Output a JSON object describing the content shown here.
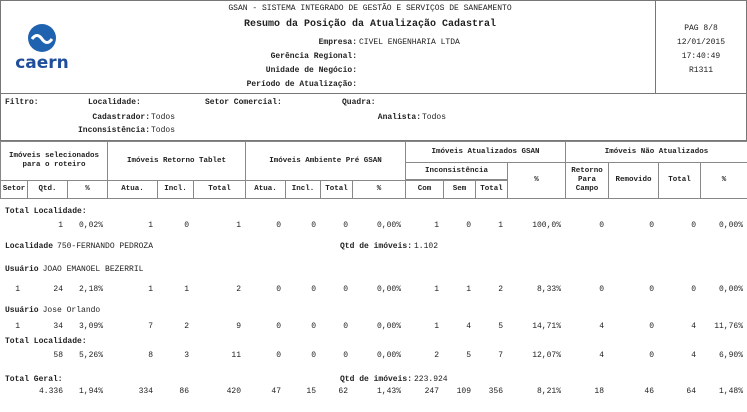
{
  "header": {
    "system": "GSAN - SISTEMA INTEGRADO DE GESTÃO E SERVIÇOS DE SANEAMENTO",
    "title": "Resumo da Posição da Atualização Cadastral",
    "logo": "caern",
    "fields": [
      {
        "label": "Empresa:",
        "value": "CIVEL ENGENHARIA LTDA"
      },
      {
        "label": "Gerência Regional:"
      },
      {
        "label": "Unidade de Negócio:"
      },
      {
        "label": "Período de Atualização:"
      }
    ],
    "page_info": [
      "PAG 8/8",
      "12/01/2015",
      "17:40:49",
      "R1311"
    ]
  },
  "filter": {
    "title": "Filtro:",
    "localidade": "Localidade:",
    "setor": "Setor Comercial:",
    "quadra": "Quadra:",
    "cadastrador_label": "Cadastrador:",
    "cadastrador": "Todos",
    "analista_label": "Analista:",
    "analista": "Todos",
    "inconsistencia_label": "Inconsistência:",
    "inconsistencia": "Todos"
  },
  "table": {
    "groups": [
      "Imóveis selecionados para o roteiro",
      "Imóveis Retorno Tablet",
      "Imóveis Ambiente Pré GSAN",
      "Imóveis Atualizados GSAN",
      "Imóveis Não Atualizados"
    ],
    "subgroup": "Inconsistência",
    "columns": [
      "Setor",
      "Qtd.",
      "%",
      "Atua.",
      "Incl.",
      "Total",
      "Atua.",
      "Incl.",
      "Total",
      "%",
      "Com",
      "Sem",
      "Total",
      "%",
      "Retorno Para Campo",
      "Removido",
      "Total",
      "%"
    ],
    "sections": [
      {
        "label": "Total Localidade:"
      },
      {
        "row": [
          null,
          "1",
          "0,02%",
          "1",
          "0",
          "1",
          "0",
          "0",
          "0",
          "0,00%",
          "1",
          "0",
          "1",
          "100,0%",
          "0",
          "0",
          "0",
          "0,00%"
        ]
      },
      {
        "label": "Localidade",
        "value": "750-FERNANDO PEDROZA",
        "note_label": "Qtd de imóveis:",
        "note_value": "1.102"
      },
      {
        "label": "Usuário",
        "value": "JOAO EMANOEL BEZERRIL"
      },
      {
        "row": [
          "1",
          "24",
          "2,18%",
          "1",
          "1",
          "2",
          "0",
          "0",
          "0",
          "0,00%",
          "1",
          "1",
          "2",
          "8,33%",
          "0",
          "0",
          "0",
          "0,00%"
        ]
      },
      {
        "label": "Usuário",
        "value": "Jose Orlando"
      },
      {
        "row": [
          "1",
          "34",
          "3,09%",
          "7",
          "2",
          "9",
          "0",
          "0",
          "0",
          "0,00%",
          "1",
          "4",
          "5",
          "14,71%",
          "4",
          "0",
          "4",
          "11,76%"
        ]
      },
      {
        "label": "Total Localidade:"
      },
      {
        "row": [
          null,
          "58",
          "5,26%",
          "8",
          "3",
          "11",
          "0",
          "0",
          "0",
          "0,00%",
          "2",
          "5",
          "7",
          "12,07%",
          "4",
          "0",
          "4",
          "6,90%"
        ]
      },
      {
        "label": "Total Geral:",
        "note_label": "Qtd de imóveis:",
        "note_value": "223.924"
      },
      {
        "row": [
          null,
          "4.336",
          "1,94%",
          "334",
          "86",
          "420",
          "47",
          "15",
          "62",
          "1,43%",
          "247",
          "109",
          "356",
          "8,21%",
          "18",
          "46",
          "64",
          "1,48%"
        ]
      }
    ]
  }
}
